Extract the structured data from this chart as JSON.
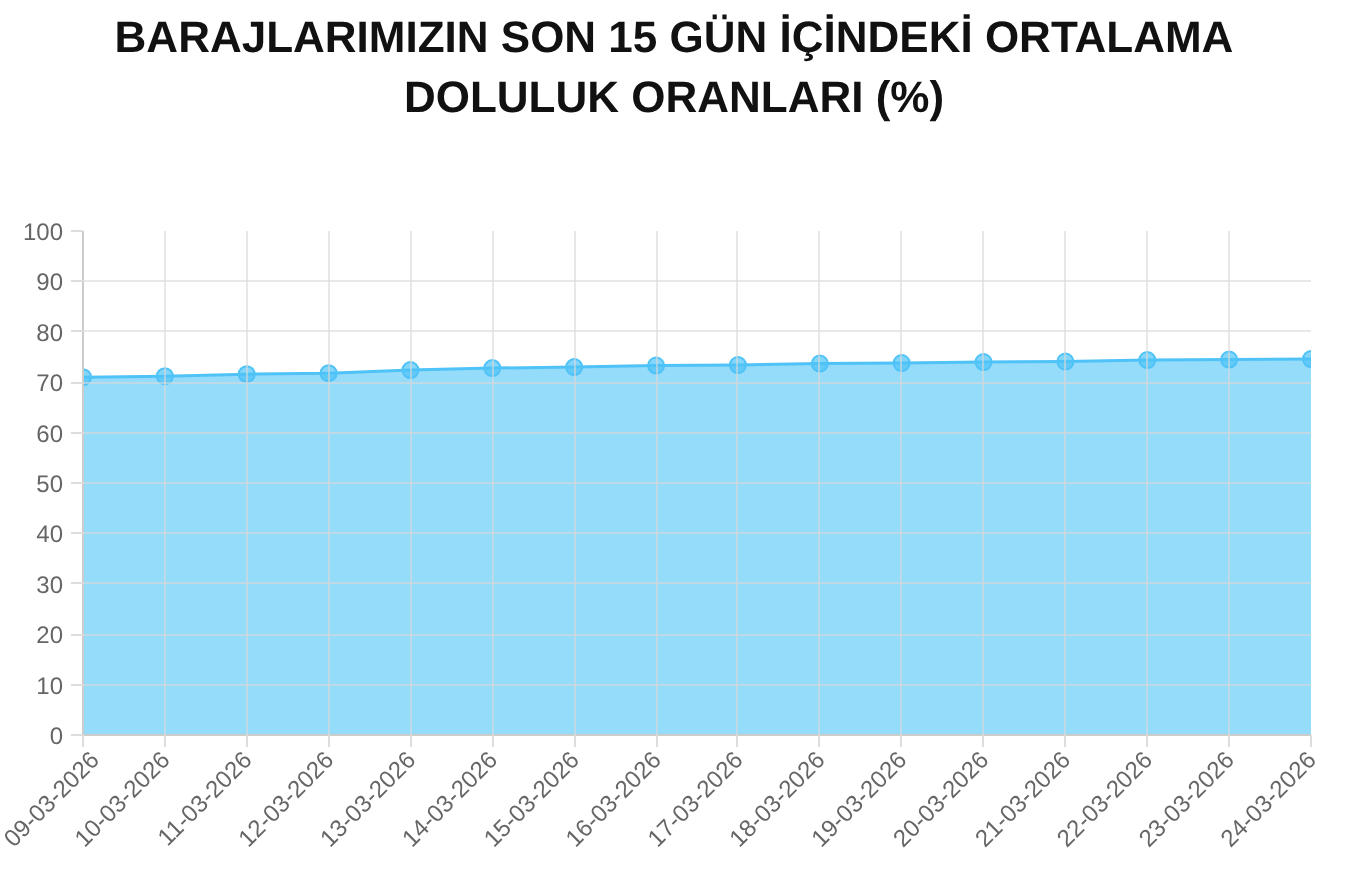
{
  "chart_data": {
    "type": "area",
    "title": "BARAJLARIMIZIN SON 15 GÜN İÇİNDEKİ ORTALAMA DOLULUK ORANLARI (%)",
    "categories": [
      "09-03-2026",
      "10-03-2026",
      "11-03-2026",
      "12-03-2026",
      "13-03-2026",
      "14-03-2026",
      "15-03-2026",
      "16-03-2026",
      "17-03-2026",
      "18-03-2026",
      "19-03-2026",
      "20-03-2026",
      "21-03-2026",
      "22-03-2026",
      "23-03-2026",
      "24-03-2026"
    ],
    "series": [
      {
        "color": "#4fc3f7",
        "values": [
          71.0,
          71.2,
          71.6,
          71.8,
          72.4,
          72.8,
          73.0,
          73.3,
          73.4,
          73.7,
          73.8,
          74.0,
          74.1,
          74.4,
          74.5,
          74.6
        ]
      }
    ],
    "ylim": [
      0,
      100
    ],
    "yticks": [
      0,
      10,
      20,
      30,
      40,
      50,
      60,
      70,
      80,
      90,
      100
    ],
    "grid": true,
    "marker": "circle"
  }
}
